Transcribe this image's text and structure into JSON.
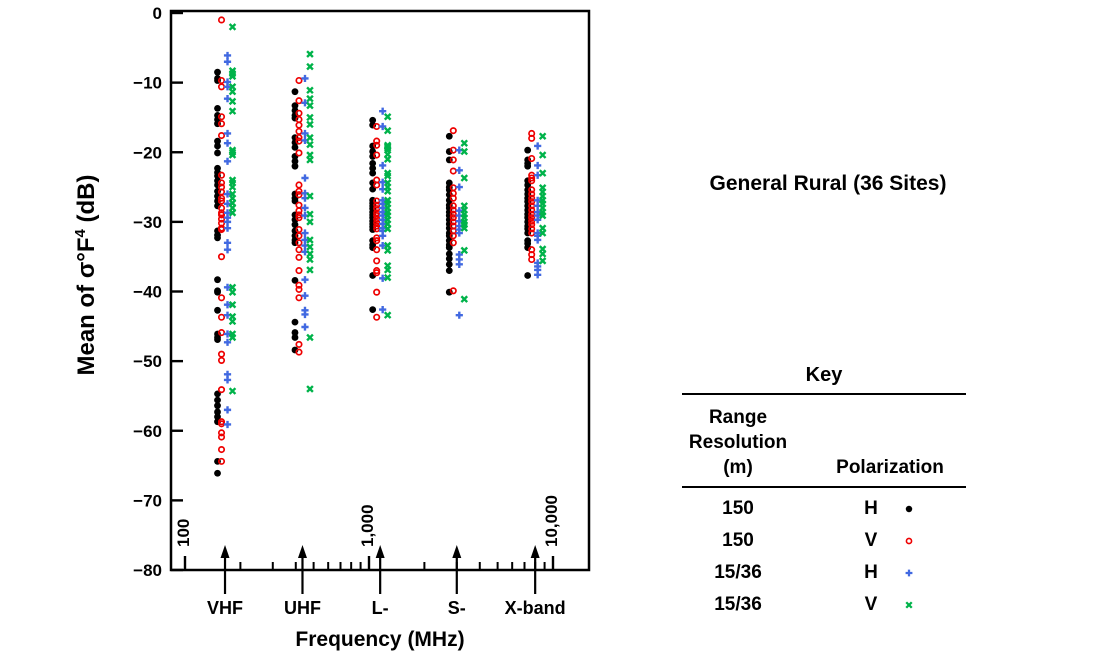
{
  "figure": {
    "title": "General Rural (36 Sites)"
  },
  "key": {
    "title": "Key",
    "col1_lines": [
      "Range",
      "Resolution",
      "(m)"
    ],
    "col2_header": "Polarization",
    "rows": [
      {
        "range": "150",
        "pol": "H",
        "marker": "dot",
        "color": "#000000"
      },
      {
        "range": "150",
        "pol": "V",
        "marker": "open-circle",
        "color": "#EE0000"
      },
      {
        "range": "15/36",
        "pol": "H",
        "marker": "plus",
        "color": "#4169E1"
      },
      {
        "range": "15/36",
        "pol": "V",
        "marker": "x",
        "color": "#00B34A"
      }
    ]
  },
  "chart_data": {
    "type": "scatter",
    "xlabel": "Frequency (MHz)",
    "ylabel": {
      "prefix": "Mean of σ°F",
      "sup": "4",
      "suffix": " (dB)"
    },
    "x_scale": "log",
    "xlim": [
      83,
      15500
    ],
    "ylim": [
      -80,
      0
    ],
    "grid": false,
    "yticks": [
      {
        "v": 0,
        "label": "0"
      },
      {
        "v": -10,
        "label": "−10"
      },
      {
        "v": -20,
        "label": "−20"
      },
      {
        "v": -30,
        "label": "−30"
      },
      {
        "v": -40,
        "label": "−40"
      },
      {
        "v": -50,
        "label": "−50"
      },
      {
        "v": -60,
        "label": "−60"
      },
      {
        "v": -70,
        "label": "−70"
      },
      {
        "v": -80,
        "label": "−80"
      }
    ],
    "x_major_ticks": [
      {
        "f": 100,
        "label": "100"
      },
      {
        "f": 1000,
        "label": "1,000"
      },
      {
        "f": 10000,
        "label": "10,000"
      }
    ],
    "bands": [
      {
        "name": "VHF",
        "freq": 165
      },
      {
        "name": "UHF",
        "freq": 435
      },
      {
        "name": "L-",
        "freq": 1150
      },
      {
        "name": "S-",
        "freq": 3000
      },
      {
        "name": "X-band",
        "freq": 8000
      }
    ],
    "series": [
      {
        "name": "150 m, H pol",
        "marker": "dot",
        "color": "#000000",
        "values": {
          "VHF": [
            -8.5,
            -9.4,
            -9.7,
            -13.7,
            -14.7,
            -15.3,
            -15.9,
            -18.4,
            -19.1,
            -20.1,
            -22.3,
            -22.9,
            -23.4,
            -24.1,
            -24.7,
            -25.6,
            -26.3,
            -27.0,
            -27.7,
            -31.3,
            -31.9,
            -32.3,
            -38.3,
            -39.9,
            -40.1,
            -42.7,
            -46.1,
            -46.6,
            -46.9,
            -54.7,
            -55.6,
            -56.4,
            -57.3,
            -58.0,
            -58.7,
            -64.4,
            -66.1
          ],
          "UHF": [
            -11.3,
            -13.3,
            -14.0,
            -14.7,
            -15.1,
            -17.9,
            -18.6,
            -19.3,
            -20.6,
            -21.3,
            -22.0,
            -26.0,
            -26.6,
            -27.0,
            -29.0,
            -29.7,
            -30.4,
            -31.3,
            -32.0,
            -32.6,
            -33.0,
            -38.4,
            -44.4,
            -45.9,
            -46.6,
            -48.4
          ],
          "L-": [
            -15.4,
            -16.1,
            -19.1,
            -19.9,
            -20.6,
            -21.6,
            -22.3,
            -23.0,
            -24.4,
            -25.3,
            -26.9,
            -27.3,
            -27.7,
            -28.1,
            -28.6,
            -29.0,
            -29.4,
            -29.9,
            -30.3,
            -30.7,
            -31.1,
            -32.7,
            -33.3,
            -33.7,
            -37.7,
            -42.6
          ],
          "S-": [
            -17.7,
            -19.9,
            -21.1,
            -24.4,
            -25.0,
            -25.4,
            -26.1,
            -26.9,
            -27.6,
            -28.0,
            -28.6,
            -29.1,
            -29.7,
            -30.3,
            -30.9,
            -31.6,
            -32.0,
            -32.7,
            -33.3,
            -33.7,
            -34.6,
            -35.3,
            -36.1,
            -37.0,
            -40.1
          ],
          "X-band": [
            -19.7,
            -21.1,
            -21.6,
            -22.0,
            -24.1,
            -24.7,
            -25.4,
            -26.0,
            -26.6,
            -27.1,
            -27.7,
            -28.3,
            -28.9,
            -29.4,
            -30.0,
            -30.6,
            -31.0,
            -31.6,
            -32.7,
            -33.1,
            -33.7,
            -37.7
          ]
        }
      },
      {
        "name": "150 m, V pol",
        "marker": "open-circle",
        "color": "#EE0000",
        "values": {
          "VHF": [
            -1.0,
            -9.7,
            -10.6,
            -14.9,
            -15.9,
            -17.6,
            -23.3,
            -24.4,
            -25.0,
            -25.7,
            -26.6,
            -27.0,
            -28.0,
            -28.7,
            -29.0,
            -29.6,
            -30.2,
            -30.9,
            -31.1,
            -35.0,
            -40.9,
            -43.7,
            -45.9,
            -49.0,
            -49.9,
            -54.1,
            -58.7,
            -59.0,
            -60.3,
            -60.9,
            -62.7,
            -64.4
          ],
          "UHF": [
            -9.7,
            -12.6,
            -14.4,
            -15.3,
            -16.1,
            -17.0,
            -17.9,
            -18.4,
            -20.1,
            -24.7,
            -25.6,
            -26.1,
            -27.6,
            -28.4,
            -29.0,
            -29.4,
            -31.1,
            -32.0,
            -33.0,
            -34.0,
            -35.1,
            -37.0,
            -39.1,
            -39.7,
            -40.9,
            -47.6,
            -48.7
          ],
          "L-": [
            -16.3,
            -18.4,
            -19.0,
            -20.4,
            -24.0,
            -24.7,
            -27.0,
            -27.6,
            -28.1,
            -28.7,
            -29.1,
            -29.6,
            -30.1,
            -30.6,
            -31.0,
            -32.3,
            -32.7,
            -34.0,
            -35.6,
            -37.0,
            -37.3,
            -40.1,
            -43.7
          ],
          "S-": [
            -16.9,
            -19.7,
            -21.1,
            -22.7,
            -25.1,
            -25.9,
            -26.6,
            -27.7,
            -28.3,
            -28.9,
            -29.4,
            -30.0,
            -30.6,
            -31.3,
            -32.0,
            -33.0,
            -39.9
          ],
          "X-band": [
            -17.3,
            -18.0,
            -20.9,
            -23.3,
            -23.7,
            -24.1,
            -25.4,
            -26.0,
            -26.6,
            -27.1,
            -27.7,
            -28.3,
            -28.9,
            -29.4,
            -29.9,
            -30.4,
            -31.0,
            -31.6,
            -34.0,
            -34.7,
            -35.4
          ]
        }
      },
      {
        "name": "15/36 m, H pol",
        "marker": "plus",
        "color": "#4169E1",
        "values": {
          "VHF": [
            -6.1,
            -7.0,
            -9.9,
            -10.6,
            -12.3,
            -17.3,
            -18.7,
            -21.3,
            -26.0,
            -27.4,
            -28.7,
            -29.4,
            -30.0,
            -30.9,
            -33.0,
            -34.0,
            -39.4,
            -41.9,
            -43.4,
            -46.1,
            -47.3,
            -51.9,
            -52.7,
            -57.0,
            -59.1
          ],
          "UHF": [
            -9.4,
            -12.9,
            -17.3,
            -18.3,
            -23.7,
            -25.9,
            -26.6,
            -28.0,
            -29.1,
            -31.6,
            -32.6,
            -33.4,
            -34.3,
            -38.3,
            -40.6,
            -42.7,
            -43.3,
            -45.1
          ],
          "L-": [
            -14.1,
            -16.3,
            -21.9,
            -24.3,
            -25.3,
            -26.9,
            -27.4,
            -28.0,
            -28.6,
            -29.1,
            -29.7,
            -30.3,
            -30.9,
            -31.3,
            -32.0,
            -33.4,
            -38.1,
            -42.6
          ],
          "S-": [
            -19.7,
            -22.6,
            -25.0,
            -28.4,
            -29.1,
            -29.9,
            -30.6,
            -31.1,
            -31.6,
            -34.7,
            -35.4,
            -36.1,
            -43.4
          ],
          "X-band": [
            -19.1,
            -21.9,
            -23.3,
            -26.9,
            -27.7,
            -28.6,
            -29.1,
            -29.7,
            -31.6,
            -32.0,
            -32.6,
            -35.9,
            -36.4,
            -36.9,
            -37.6
          ]
        }
      },
      {
        "name": "15/36 m, V pol",
        "marker": "x",
        "color": "#00B34A",
        "values": {
          "VHF": [
            -2.0,
            -8.3,
            -8.7,
            -9.1,
            -10.6,
            -11.3,
            -12.7,
            -14.1,
            -19.7,
            -20.0,
            -20.4,
            -24.0,
            -24.4,
            -25.0,
            -26.0,
            -26.6,
            -27.3,
            -28.0,
            -28.7,
            -39.4,
            -40.1,
            -41.9,
            -43.6,
            -44.3,
            -46.1,
            -46.6,
            -54.3
          ],
          "UHF": [
            -5.9,
            -7.7,
            -11.1,
            -12.3,
            -13.3,
            -15.0,
            -16.0,
            -17.9,
            -18.9,
            -20.4,
            -21.1,
            -26.3,
            -28.9,
            -30.0,
            -32.6,
            -33.6,
            -34.6,
            -35.4,
            -36.9,
            -46.6,
            -54.0
          ],
          "L-": [
            -14.9,
            -16.9,
            -19.0,
            -19.2,
            -19.4,
            -19.7,
            -20.3,
            -21.0,
            -23.0,
            -23.4,
            -24.4,
            -25.0,
            -25.6,
            -26.9,
            -27.4,
            -28.0,
            -28.6,
            -29.1,
            -29.7,
            -30.3,
            -31.0,
            -33.4,
            -34.1,
            -36.3,
            -36.9,
            -38.0,
            -43.4
          ],
          "S-": [
            -18.7,
            -19.9,
            -23.7,
            -27.7,
            -28.3,
            -28.9,
            -29.4,
            -30.0,
            -30.4,
            -30.9,
            -34.1,
            -41.1
          ],
          "X-band": [
            -17.7,
            -20.4,
            -23.0,
            -25.1,
            -25.7,
            -26.3,
            -26.9,
            -27.4,
            -28.0,
            -28.6,
            -29.1,
            -30.9,
            -31.6,
            -33.9,
            -34.6,
            -35.6
          ]
        }
      }
    ]
  }
}
